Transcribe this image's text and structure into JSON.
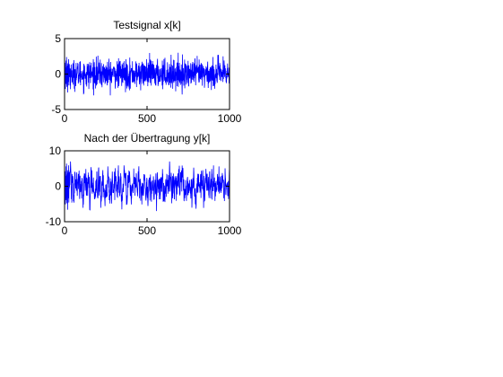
{
  "chart_data": [
    {
      "type": "line",
      "title": "Testsignal x[k]",
      "xlabel": "",
      "ylabel": "",
      "xlim": [
        0,
        1000
      ],
      "ylim": [
        -5,
        5
      ],
      "xticks": [
        "0",
        "500",
        "1000"
      ],
      "yticks": [
        "5",
        "0",
        "-5"
      ],
      "grid": false,
      "legend": "none",
      "color": "#0000ff",
      "series": [
        {
          "n": 1000,
          "mean": 0,
          "std": 1.0,
          "min": -3,
          "max": 3,
          "values": [
            0.4,
            -1.2,
            0.8,
            1.6,
            -0.5,
            -2.1,
            0.9,
            0.2,
            -0.8,
            1.9,
            -1.4,
            0.3,
            2.4,
            -0.6,
            -1.8,
            1.1,
            0.0,
            -0.9,
            1.5,
            -2.6,
            0.7,
            1.2,
            -0.3,
            -1.1,
            2.1,
            0.5,
            -1.6,
            0.9,
            -0.2,
            1.4
          ]
        }
      ]
    },
    {
      "type": "line",
      "title": "Nach der Übertragung y[k]",
      "xlabel": "",
      "ylabel": "",
      "xlim": [
        0,
        1000
      ],
      "ylim": [
        -10,
        10
      ],
      "xticks": [
        "0",
        "500",
        "1000"
      ],
      "yticks": [
        "10",
        "0",
        "-10"
      ],
      "grid": false,
      "legend": "none",
      "color": "#0000ff",
      "series": [
        {
          "n": 1000,
          "mean": 0,
          "std": 2.3,
          "min": -7,
          "max": 7,
          "values": [
            1.2,
            -2.8,
            3.5,
            4.2,
            -1.5,
            -5.1,
            2.9,
            0.8,
            -3.2,
            5.6,
            -3.9,
            1.1,
            6.4,
            -2.2,
            -4.8,
            3.3,
            0.4,
            -2.7,
            4.5,
            -6.6,
            2.0,
            3.9,
            -1.0,
            -3.4,
            5.9,
            1.6,
            -4.6,
            2.7,
            -0.7,
            4.0
          ]
        }
      ]
    }
  ]
}
